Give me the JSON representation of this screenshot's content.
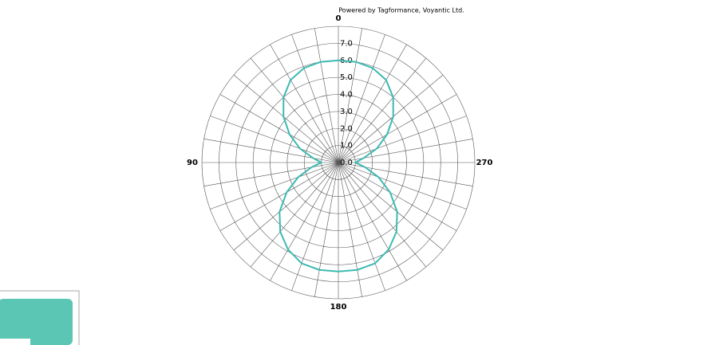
{
  "chart_data": {
    "type": "polar",
    "watermark": "Powered by Tagformance, Voyantic Ltd.",
    "x": [
      0,
      10,
      20,
      30,
      40,
      50,
      60,
      70,
      80,
      90,
      100,
      110,
      120,
      130,
      140,
      150,
      160,
      170,
      180,
      190,
      200,
      210,
      220,
      230,
      240,
      250,
      260,
      270,
      280,
      290,
      300,
      310,
      320,
      330,
      340,
      350
    ],
    "series": [
      {
        "color": "#3cbab2",
        "values": [
          6.0,
          6.0,
          5.9,
          5.6,
          5.0,
          4.2,
          3.3,
          2.4,
          1.5,
          1.0,
          1.6,
          2.5,
          3.5,
          4.5,
          5.3,
          5.9,
          6.3,
          6.4,
          6.4,
          6.4,
          6.3,
          5.9,
          5.3,
          4.5,
          3.5,
          2.5,
          1.6,
          1.0,
          1.5,
          2.4,
          3.3,
          4.2,
          5.0,
          5.6,
          5.9,
          6.0
        ]
      }
    ],
    "rlim": [
      0,
      8
    ],
    "rticks": [
      {
        "value": 0,
        "label": "0.0"
      },
      {
        "value": 1,
        "label": "1.0"
      },
      {
        "value": 2,
        "label": "2.0"
      },
      {
        "value": 3,
        "label": "3.0"
      },
      {
        "value": 4,
        "label": "4.0"
      },
      {
        "value": 5,
        "label": "5.0"
      },
      {
        "value": 6,
        "label": "6.0"
      },
      {
        "value": 7,
        "label": "7.0"
      }
    ],
    "xticks": [
      0,
      90,
      180,
      270
    ],
    "grid": true
  }
}
